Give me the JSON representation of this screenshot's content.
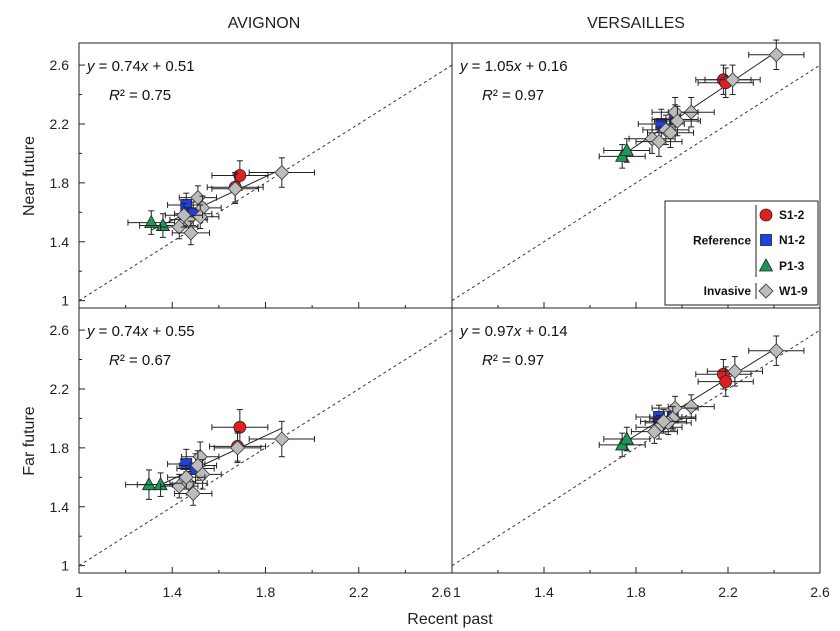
{
  "chart_data": {
    "type": "scatter",
    "columns": [
      "AVIGNON",
      "VERSAILLES"
    ],
    "rows": [
      "Near future",
      "Far future"
    ],
    "xlabel": "Recent past",
    "xlim": [
      1,
      2.6
    ],
    "ylim": [
      0.95,
      2.75
    ],
    "xticks": [
      "1",
      "1.4",
      "1.8",
      "2.2",
      "2.6"
    ],
    "yticks": [
      "1",
      "1.4",
      "1.8",
      "2.2",
      "2.6"
    ],
    "colors": {
      "S": "#e02020",
      "N": "#1f3fe6",
      "P": "#1a9a5a",
      "W": "#bcbcbc"
    },
    "legend": {
      "groups": [
        {
          "label": "Reference",
          "series": [
            "S",
            "N",
            "P"
          ]
        },
        {
          "label": "Invasive",
          "series": [
            "W"
          ]
        }
      ],
      "entries": {
        "S": "S1-2",
        "N": "N1-2",
        "P": "P1-3",
        "W": "W1-9"
      },
      "placement": "top-right panel, lower-right corner"
    },
    "panels": [
      {
        "name": "avignon-near",
        "eq": "y = 0.74x + 0.51",
        "r2": "R² = 0.75",
        "slope": 0.74,
        "intercept": 0.51,
        "points": [
          {
            "s": "S",
            "x": 1.69,
            "y": 1.85,
            "xe": 0.12,
            "ye": 0.1
          },
          {
            "s": "S",
            "x": 1.67,
            "y": 1.77,
            "xe": 0.12,
            "ye": 0.1
          },
          {
            "s": "N",
            "x": 1.46,
            "y": 1.65,
            "xe": 0.08,
            "ye": 0.08
          },
          {
            "s": "N",
            "x": 1.49,
            "y": 1.59,
            "xe": 0.08,
            "ye": 0.08
          },
          {
            "s": "P",
            "x": 1.31,
            "y": 1.53,
            "xe": 0.1,
            "ye": 0.08
          },
          {
            "s": "P",
            "x": 1.36,
            "y": 1.51,
            "xe": 0.1,
            "ye": 0.08
          },
          {
            "s": "W",
            "x": 1.87,
            "y": 1.87,
            "xe": 0.14,
            "ye": 0.1
          },
          {
            "s": "W",
            "x": 1.67,
            "y": 1.76,
            "xe": 0.1,
            "ye": 0.1
          },
          {
            "s": "W",
            "x": 1.51,
            "y": 1.7,
            "xe": 0.08,
            "ye": 0.08
          },
          {
            "s": "W",
            "x": 1.53,
            "y": 1.63,
            "xe": 0.08,
            "ye": 0.08
          },
          {
            "s": "W",
            "x": 1.47,
            "y": 1.55,
            "xe": 0.08,
            "ye": 0.08
          },
          {
            "s": "W",
            "x": 1.43,
            "y": 1.5,
            "xe": 0.08,
            "ye": 0.08
          },
          {
            "s": "W",
            "x": 1.48,
            "y": 1.46,
            "xe": 0.08,
            "ye": 0.08
          },
          {
            "s": "W",
            "x": 1.52,
            "y": 1.57,
            "xe": 0.08,
            "ye": 0.08
          },
          {
            "s": "W",
            "x": 1.45,
            "y": 1.58,
            "xe": 0.08,
            "ye": 0.08
          }
        ]
      },
      {
        "name": "versailles-near",
        "eq": "y = 1.05x + 0.16",
        "r2": "R² = 0.97",
        "slope": 1.05,
        "intercept": 0.16,
        "points": [
          {
            "s": "S",
            "x": 2.18,
            "y": 2.5,
            "xe": 0.12,
            "ye": 0.1
          },
          {
            "s": "S",
            "x": 2.19,
            "y": 2.48,
            "xe": 0.12,
            "ye": 0.1
          },
          {
            "s": "N",
            "x": 1.91,
            "y": 2.2,
            "xe": 0.1,
            "ye": 0.1
          },
          {
            "s": "N",
            "x": 1.97,
            "y": 2.23,
            "xe": 0.1,
            "ye": 0.1
          },
          {
            "s": "P",
            "x": 1.74,
            "y": 1.98,
            "xe": 0.1,
            "ye": 0.08
          },
          {
            "s": "P",
            "x": 1.76,
            "y": 2.02,
            "xe": 0.1,
            "ye": 0.08
          },
          {
            "s": "W",
            "x": 2.41,
            "y": 2.67,
            "xe": 0.12,
            "ye": 0.1
          },
          {
            "s": "W",
            "x": 2.22,
            "y": 2.5,
            "xe": 0.12,
            "ye": 0.1
          },
          {
            "s": "W",
            "x": 2.04,
            "y": 2.28,
            "xe": 0.1,
            "ye": 0.1
          },
          {
            "s": "W",
            "x": 1.97,
            "y": 2.28,
            "xe": 0.1,
            "ye": 0.1
          },
          {
            "s": "W",
            "x": 1.98,
            "y": 2.22,
            "xe": 0.1,
            "ye": 0.1
          },
          {
            "s": "W",
            "x": 1.93,
            "y": 2.16,
            "xe": 0.1,
            "ye": 0.1
          },
          {
            "s": "W",
            "x": 1.95,
            "y": 2.14,
            "xe": 0.1,
            "ye": 0.1
          },
          {
            "s": "W",
            "x": 1.87,
            "y": 2.1,
            "xe": 0.1,
            "ye": 0.1
          },
          {
            "s": "W",
            "x": 1.9,
            "y": 2.08,
            "xe": 0.1,
            "ye": 0.1
          }
        ]
      },
      {
        "name": "avignon-far",
        "eq": "y = 0.74x + 0.55",
        "r2": "R² = 0.67",
        "slope": 0.74,
        "intercept": 0.55,
        "points": [
          {
            "s": "S",
            "x": 1.69,
            "y": 1.94,
            "xe": 0.12,
            "ye": 0.12
          },
          {
            "s": "S",
            "x": 1.68,
            "y": 1.81,
            "xe": 0.12,
            "ye": 0.1
          },
          {
            "s": "N",
            "x": 1.46,
            "y": 1.69,
            "xe": 0.08,
            "ye": 0.1
          },
          {
            "s": "N",
            "x": 1.5,
            "y": 1.66,
            "xe": 0.08,
            "ye": 0.1
          },
          {
            "s": "P",
            "x": 1.3,
            "y": 1.55,
            "xe": 0.1,
            "ye": 0.1
          },
          {
            "s": "P",
            "x": 1.35,
            "y": 1.55,
            "xe": 0.1,
            "ye": 0.08
          },
          {
            "s": "W",
            "x": 1.87,
            "y": 1.86,
            "xe": 0.14,
            "ye": 0.12
          },
          {
            "s": "W",
            "x": 1.68,
            "y": 1.8,
            "xe": 0.1,
            "ye": 0.1
          },
          {
            "s": "W",
            "x": 1.52,
            "y": 1.74,
            "xe": 0.08,
            "ye": 0.1
          },
          {
            "s": "W",
            "x": 1.51,
            "y": 1.68,
            "xe": 0.08,
            "ye": 0.1
          },
          {
            "s": "W",
            "x": 1.53,
            "y": 1.62,
            "xe": 0.08,
            "ye": 0.1
          },
          {
            "s": "W",
            "x": 1.43,
            "y": 1.54,
            "xe": 0.08,
            "ye": 0.08
          },
          {
            "s": "W",
            "x": 1.47,
            "y": 1.56,
            "xe": 0.08,
            "ye": 0.08
          },
          {
            "s": "W",
            "x": 1.49,
            "y": 1.49,
            "xe": 0.08,
            "ye": 0.08
          },
          {
            "s": "W",
            "x": 1.46,
            "y": 1.6,
            "xe": 0.08,
            "ye": 0.08
          }
        ]
      },
      {
        "name": "versailles-far",
        "eq": "y = 0.97x + 0.14",
        "r2": "R² = 0.97",
        "slope": 0.97,
        "intercept": 0.14,
        "points": [
          {
            "s": "S",
            "x": 2.18,
            "y": 2.3,
            "xe": 0.12,
            "ye": 0.1
          },
          {
            "s": "S",
            "x": 2.19,
            "y": 2.25,
            "xe": 0.12,
            "ye": 0.1
          },
          {
            "s": "N",
            "x": 1.9,
            "y": 2.01,
            "xe": 0.1,
            "ye": 0.08
          },
          {
            "s": "N",
            "x": 1.96,
            "y": 2.01,
            "xe": 0.1,
            "ye": 0.08
          },
          {
            "s": "P",
            "x": 1.74,
            "y": 1.82,
            "xe": 0.1,
            "ye": 0.08
          },
          {
            "s": "P",
            "x": 1.76,
            "y": 1.86,
            "xe": 0.1,
            "ye": 0.08
          },
          {
            "s": "W",
            "x": 2.41,
            "y": 2.46,
            "xe": 0.12,
            "ye": 0.1
          },
          {
            "s": "W",
            "x": 2.23,
            "y": 2.32,
            "xe": 0.12,
            "ye": 0.1
          },
          {
            "s": "W",
            "x": 2.04,
            "y": 2.08,
            "xe": 0.1,
            "ye": 0.08
          },
          {
            "s": "W",
            "x": 1.97,
            "y": 2.07,
            "xe": 0.1,
            "ye": 0.08
          },
          {
            "s": "W",
            "x": 1.96,
            "y": 2.0,
            "xe": 0.1,
            "ye": 0.08
          },
          {
            "s": "W",
            "x": 1.9,
            "y": 1.94,
            "xe": 0.1,
            "ye": 0.08
          },
          {
            "s": "W",
            "x": 1.94,
            "y": 1.97,
            "xe": 0.1,
            "ye": 0.08
          },
          {
            "s": "W",
            "x": 1.88,
            "y": 1.91,
            "xe": 0.1,
            "ye": 0.08
          },
          {
            "s": "W",
            "x": 1.92,
            "y": 1.98,
            "xe": 0.1,
            "ye": 0.08
          }
        ]
      }
    ]
  }
}
